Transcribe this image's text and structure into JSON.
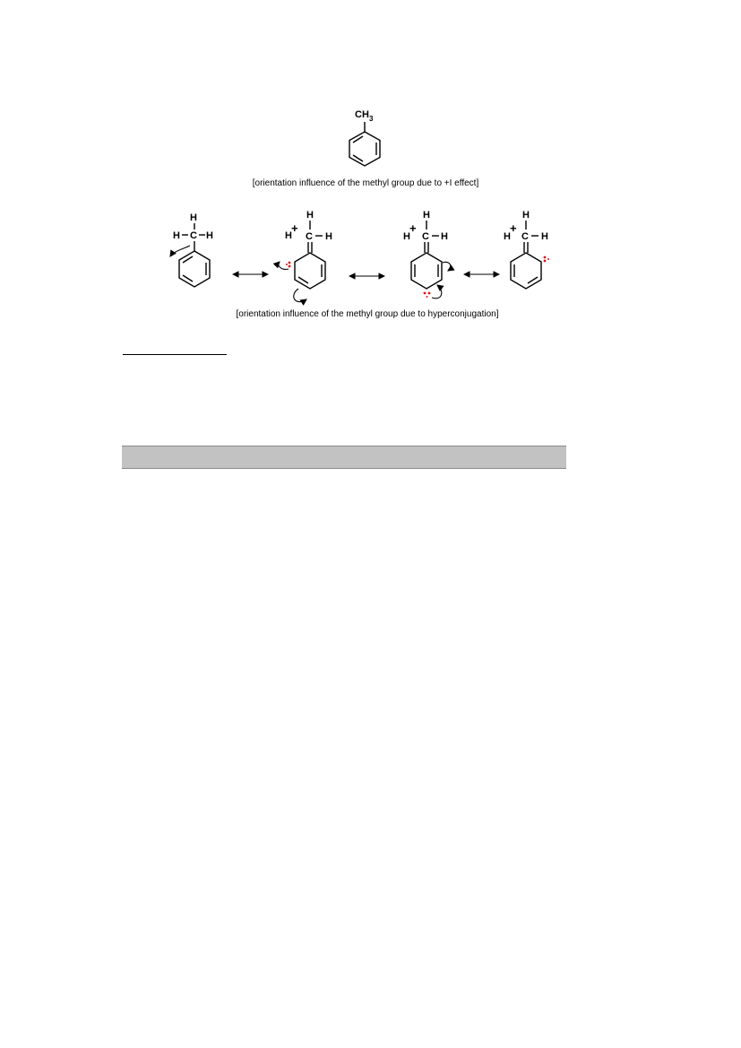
{
  "toluene": {
    "label_main": "CH",
    "label_sub": "3"
  },
  "caption_inductive": "[orientation influence of the methyl group due to +I effect]",
  "caption_hyperconjugation": "[orientation influence of the methyl group due to hyperconjugation]",
  "atoms": {
    "hydrogen": "H",
    "carbon": "C",
    "plus": "+"
  },
  "colors": {
    "positive_charge": "#1010d0",
    "lone_pair": "#e01010",
    "band": "#c2c2c2"
  }
}
